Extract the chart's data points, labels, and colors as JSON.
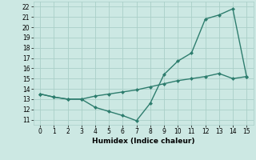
{
  "line1_x": [
    0,
    1,
    2,
    3,
    4,
    5,
    6,
    7,
    8,
    9,
    10,
    11,
    12,
    13,
    14,
    15
  ],
  "line1_y": [
    13.5,
    13.2,
    13.0,
    13.0,
    12.2,
    11.8,
    11.4,
    10.9,
    12.6,
    15.4,
    16.7,
    17.5,
    20.8,
    21.2,
    21.8,
    15.2
  ],
  "line2_x": [
    0,
    1,
    2,
    3,
    4,
    5,
    6,
    7,
    8,
    9,
    10,
    11,
    12,
    13,
    14,
    15
  ],
  "line2_y": [
    13.5,
    13.2,
    13.0,
    13.0,
    13.3,
    13.5,
    13.7,
    13.9,
    14.2,
    14.5,
    14.8,
    15.0,
    15.2,
    15.5,
    15.0,
    15.2
  ],
  "color": "#2e7d6e",
  "bg_color": "#cce8e3",
  "grid_color": "#aacfc8",
  "xlabel": "Humidex (Indice chaleur)",
  "xlim": [
    -0.5,
    15.5
  ],
  "ylim": [
    10.5,
    22.5
  ],
  "xticks": [
    0,
    1,
    2,
    3,
    4,
    5,
    6,
    7,
    8,
    9,
    10,
    11,
    12,
    13,
    14,
    15
  ],
  "yticks": [
    11,
    12,
    13,
    14,
    15,
    16,
    17,
    18,
    19,
    20,
    21,
    22
  ],
  "marker": "D",
  "markersize": 2.5,
  "linewidth": 1.0
}
